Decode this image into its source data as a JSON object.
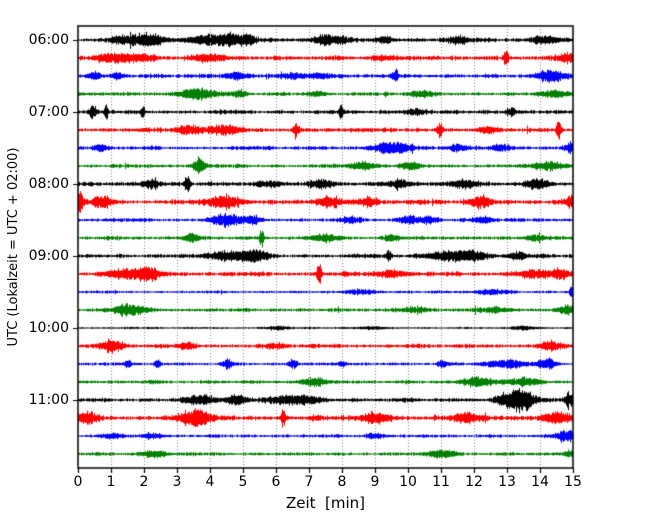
{
  "figure": {
    "background": "#ffffff",
    "text_color": "#000000"
  },
  "chart_data": {
    "type": "line",
    "subtype": "seismogram-dayplot",
    "title": "",
    "xlabel": "Zeit  [min]",
    "ylabel": "UTC (Lokalzeit = UTC + 02:00)",
    "xlim": [
      0,
      15
    ],
    "x_ticks": [
      "0",
      "1",
      "2",
      "3",
      "4",
      "5",
      "6",
      "7",
      "8",
      "9",
      "10",
      "11",
      "12",
      "13",
      "14",
      "15"
    ],
    "y_tick_labels": [
      "06:00",
      "07:00",
      "08:00",
      "09:00",
      "10:00",
      "11:00"
    ],
    "minutes_per_row": 15,
    "rows_per_hour": 4,
    "legend": "none",
    "grid": {
      "vertical_dotted": true,
      "color": "#8a8a8a"
    },
    "colors": {
      "black": "#000000",
      "red": "#ff0000",
      "blue": "#0000ff",
      "green": "#008000"
    },
    "traces": [
      {
        "label": "06:00",
        "color": "black",
        "base": 2.2,
        "events": [
          [
            1.3,
            0.25,
            3
          ],
          [
            2.1,
            0.35,
            5
          ],
          [
            3.9,
            0.4,
            4
          ],
          [
            4.6,
            0.25,
            4
          ],
          [
            5.1,
            0.15,
            5
          ],
          [
            7.5,
            0.25,
            4
          ],
          [
            8.0,
            0.15,
            3
          ],
          [
            9.3,
            0.2,
            2.5
          ],
          [
            11.5,
            0.25,
            3
          ],
          [
            14.2,
            0.35,
            3
          ]
        ]
      },
      {
        "label": "06:15",
        "color": "red",
        "base": 2.2,
        "events": [
          [
            1.1,
            0.4,
            4
          ],
          [
            2.0,
            0.25,
            3
          ],
          [
            4.0,
            0.35,
            3
          ],
          [
            9.3,
            0.25,
            2
          ],
          [
            12.95,
            0.05,
            9
          ],
          [
            14.8,
            0.2,
            4
          ]
        ]
      },
      {
        "label": "06:30",
        "color": "blue",
        "base": 2.0,
        "events": [
          [
            0.5,
            0.15,
            3
          ],
          [
            1.2,
            0.15,
            3
          ],
          [
            4.8,
            0.25,
            3
          ],
          [
            6.5,
            0.25,
            2.5
          ],
          [
            7.3,
            0.25,
            2.5
          ],
          [
            9.6,
            0.07,
            5
          ],
          [
            14.35,
            0.3,
            5
          ]
        ]
      },
      {
        "label": "06:45",
        "color": "green",
        "base": 1.8,
        "events": [
          [
            3.6,
            0.4,
            5
          ],
          [
            4.9,
            0.15,
            3
          ],
          [
            7.2,
            0.2,
            2
          ],
          [
            10.4,
            0.25,
            2
          ],
          [
            14.4,
            0.3,
            3
          ]
        ]
      },
      {
        "label": "07:00",
        "color": "black",
        "base": 2.0,
        "events": [
          [
            0.45,
            0.1,
            5
          ],
          [
            0.85,
            0.04,
            7
          ],
          [
            1.95,
            0.04,
            7
          ],
          [
            7.95,
            0.05,
            6
          ],
          [
            10.2,
            0.2,
            3
          ],
          [
            13.1,
            0.1,
            4
          ]
        ]
      },
      {
        "label": "07:15",
        "color": "red",
        "base": 2.2,
        "events": [
          [
            3.3,
            0.25,
            4
          ],
          [
            4.5,
            0.35,
            4
          ],
          [
            6.6,
            0.06,
            6
          ],
          [
            10.95,
            0.06,
            6
          ],
          [
            12.4,
            0.2,
            3
          ],
          [
            14.55,
            0.05,
            10
          ]
        ]
      },
      {
        "label": "07:30",
        "color": "blue",
        "base": 1.8,
        "events": [
          [
            0.7,
            0.15,
            3
          ],
          [
            9.5,
            0.4,
            5
          ],
          [
            11.5,
            0.2,
            3
          ],
          [
            12.8,
            0.2,
            3
          ],
          [
            14.9,
            0.15,
            4
          ]
        ]
      },
      {
        "label": "07:45",
        "color": "green",
        "base": 1.8,
        "events": [
          [
            3.65,
            0.12,
            7
          ],
          [
            8.6,
            0.35,
            3
          ],
          [
            10.0,
            0.2,
            3
          ],
          [
            14.3,
            0.35,
            3.5
          ]
        ]
      },
      {
        "label": "08:00",
        "color": "black",
        "base": 2.2,
        "events": [
          [
            2.2,
            0.25,
            3
          ],
          [
            3.3,
            0.07,
            6
          ],
          [
            5.8,
            0.25,
            3
          ],
          [
            7.4,
            0.25,
            3.5
          ],
          [
            9.7,
            0.25,
            3
          ],
          [
            11.7,
            0.25,
            3.5
          ],
          [
            13.9,
            0.25,
            3.5
          ]
        ]
      },
      {
        "label": "08:15",
        "color": "red",
        "base": 2.4,
        "events": [
          [
            0.05,
            0.08,
            8
          ],
          [
            0.7,
            0.2,
            5
          ],
          [
            4.45,
            0.35,
            5
          ],
          [
            7.6,
            0.25,
            4
          ],
          [
            8.8,
            0.2,
            4
          ],
          [
            12.2,
            0.22,
            5
          ],
          [
            14.9,
            0.1,
            5
          ]
        ]
      },
      {
        "label": "08:30",
        "color": "blue",
        "base": 1.8,
        "events": [
          [
            4.45,
            0.3,
            6
          ],
          [
            5.3,
            0.2,
            3
          ],
          [
            8.2,
            0.2,
            2.5
          ],
          [
            10.0,
            0.2,
            3
          ],
          [
            10.6,
            0.2,
            3
          ],
          [
            12.3,
            0.2,
            3
          ]
        ]
      },
      {
        "label": "08:45",
        "color": "green",
        "base": 1.8,
        "events": [
          [
            3.4,
            0.2,
            3
          ],
          [
            5.55,
            0.04,
            9
          ],
          [
            7.4,
            0.35,
            3
          ],
          [
            9.5,
            0.2,
            2.5
          ],
          [
            13.9,
            0.2,
            2.5
          ]
        ]
      },
      {
        "label": "09:00",
        "color": "black",
        "base": 2.0,
        "events": [
          [
            4.6,
            0.45,
            4
          ],
          [
            5.4,
            0.25,
            4
          ],
          [
            9.4,
            0.05,
            6
          ],
          [
            11.2,
            0.45,
            4
          ],
          [
            12.0,
            0.3,
            4
          ],
          [
            13.3,
            0.2,
            3
          ]
        ]
      },
      {
        "label": "09:15",
        "color": "red",
        "base": 2.2,
        "events": [
          [
            1.5,
            0.45,
            4
          ],
          [
            2.2,
            0.25,
            4
          ],
          [
            7.3,
            0.05,
            12
          ],
          [
            9.5,
            0.35,
            3
          ],
          [
            13.7,
            0.35,
            3
          ],
          [
            14.6,
            0.25,
            4
          ]
        ]
      },
      {
        "label": "09:30",
        "color": "blue",
        "base": 1.3,
        "events": [
          [
            8.5,
            0.3,
            2
          ],
          [
            12.5,
            0.4,
            2
          ],
          [
            14.95,
            0.05,
            5
          ]
        ]
      },
      {
        "label": "09:45",
        "color": "green",
        "base": 1.8,
        "events": [
          [
            1.5,
            0.35,
            5
          ],
          [
            10.2,
            0.3,
            2.5
          ],
          [
            12.7,
            0.3,
            2.5
          ],
          [
            14.8,
            0.2,
            3
          ]
        ]
      },
      {
        "label": "10:00",
        "color": "black",
        "base": 1.0,
        "events": [
          [
            6.0,
            0.3,
            1.5
          ],
          [
            9.0,
            0.3,
            1.2
          ],
          [
            13.5,
            0.3,
            1.5
          ]
        ]
      },
      {
        "label": "10:15",
        "color": "red",
        "base": 2.0,
        "events": [
          [
            1.0,
            0.3,
            4
          ],
          [
            3.3,
            0.2,
            3
          ],
          [
            6.0,
            0.2,
            2.5
          ],
          [
            14.3,
            0.25,
            4
          ]
        ]
      },
      {
        "label": "10:30",
        "color": "blue",
        "base": 1.5,
        "events": [
          [
            1.5,
            0.07,
            4
          ],
          [
            2.4,
            0.07,
            4
          ],
          [
            4.5,
            0.1,
            4
          ],
          [
            6.5,
            0.1,
            4
          ],
          [
            8.0,
            0.07,
            3
          ],
          [
            11.0,
            0.1,
            3
          ],
          [
            12.9,
            0.45,
            4
          ],
          [
            14.2,
            0.2,
            4
          ]
        ]
      },
      {
        "label": "10:45",
        "color": "green",
        "base": 1.8,
        "events": [
          [
            7.2,
            0.3,
            3
          ],
          [
            12.1,
            0.35,
            4
          ],
          [
            13.6,
            0.3,
            3.5
          ]
        ]
      },
      {
        "label": "11:00",
        "color": "black",
        "base": 2.0,
        "events": [
          [
            3.7,
            0.35,
            4
          ],
          [
            4.8,
            0.2,
            4
          ],
          [
            6.5,
            0.55,
            4
          ],
          [
            13.0,
            0.25,
            6
          ],
          [
            13.5,
            0.25,
            9
          ],
          [
            14.9,
            0.1,
            6
          ]
        ]
      },
      {
        "label": "11:15",
        "color": "red",
        "base": 2.6,
        "events": [
          [
            0.3,
            0.2,
            4
          ],
          [
            3.5,
            0.35,
            6
          ],
          [
            6.2,
            0.06,
            7
          ],
          [
            9.0,
            0.3,
            4
          ],
          [
            11.8,
            0.3,
            4
          ],
          [
            14.5,
            0.3,
            4
          ]
        ]
      },
      {
        "label": "11:30",
        "color": "blue",
        "base": 1.6,
        "events": [
          [
            1.0,
            0.2,
            2.5
          ],
          [
            2.2,
            0.2,
            2.5
          ],
          [
            9.0,
            0.2,
            2
          ],
          [
            14.75,
            0.2,
            5
          ]
        ]
      },
      {
        "label": "11:45",
        "color": "green",
        "base": 1.7,
        "events": [
          [
            2.3,
            0.3,
            3
          ],
          [
            11.0,
            0.3,
            3
          ],
          [
            14.9,
            0.1,
            2.5
          ]
        ]
      }
    ]
  }
}
